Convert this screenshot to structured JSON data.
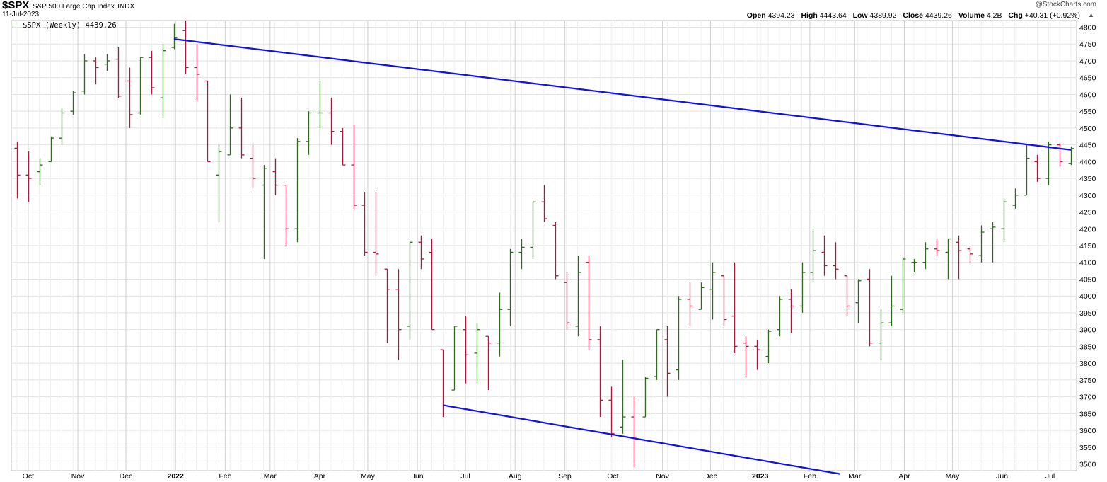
{
  "header": {
    "symbol": "$SPX",
    "name": "S&P 500 Large Cap Index",
    "exchange": "INDX",
    "date": "11-Jul-2023",
    "copyright": "@StockCharts.com"
  },
  "quote": {
    "open_label": "Open",
    "open": "4394.23",
    "high_label": "High",
    "high": "4443.64",
    "low_label": "Low",
    "low": "4389.92",
    "close_label": "Close",
    "close": "4439.26",
    "volume_label": "Volume",
    "volume": "4.2B",
    "chg_label": "Chg",
    "chg": "+40.31 (+0.92%)"
  },
  "legend": {
    "text": "$SPX (Weekly) 4439.26"
  },
  "colors": {
    "up": "#2e6b1e",
    "down": "#b0173a",
    "trendline": "#1010e0",
    "grid": "#e2e2e2"
  },
  "chart_data": {
    "type": "bar",
    "subtype": "ohlc",
    "title": "$SPX (Weekly) 4439.26",
    "ylim": [
      3480,
      4820
    ],
    "yticks": [
      3500,
      3550,
      3600,
      3650,
      3700,
      3750,
      3800,
      3850,
      3900,
      3950,
      4000,
      4050,
      4100,
      4150,
      4200,
      4250,
      4300,
      4350,
      4400,
      4450,
      4500,
      4550,
      4600,
      4650,
      4700,
      4750,
      4800
    ],
    "x_start": "2021-09-24",
    "x_end": "2023-07-14",
    "month_ticks": [
      {
        "label": "Oct",
        "date": "2021-10-01"
      },
      {
        "label": "Nov",
        "date": "2021-11-01"
      },
      {
        "label": "Dec",
        "date": "2021-12-01"
      },
      {
        "label": "2022",
        "date": "2022-01-01",
        "bold": true
      },
      {
        "label": "Feb",
        "date": "2022-02-01"
      },
      {
        "label": "Mar",
        "date": "2022-03-01"
      },
      {
        "label": "Apr",
        "date": "2022-04-01"
      },
      {
        "label": "May",
        "date": "2022-05-01"
      },
      {
        "label": "Jun",
        "date": "2022-06-01"
      },
      {
        "label": "Jul",
        "date": "2022-07-01"
      },
      {
        "label": "Aug",
        "date": "2022-08-01"
      },
      {
        "label": "Sep",
        "date": "2022-09-01"
      },
      {
        "label": "Oct",
        "date": "2022-10-01"
      },
      {
        "label": "Nov",
        "date": "2022-11-01"
      },
      {
        "label": "Dec",
        "date": "2022-12-01"
      },
      {
        "label": "2023",
        "date": "2023-01-01",
        "bold": true
      },
      {
        "label": "Feb",
        "date": "2023-02-01"
      },
      {
        "label": "Mar",
        "date": "2023-03-01"
      },
      {
        "label": "Apr",
        "date": "2023-04-01"
      },
      {
        "label": "May",
        "date": "2023-05-01"
      },
      {
        "label": "Jun",
        "date": "2023-06-01"
      },
      {
        "label": "Jul",
        "date": "2023-07-01"
      }
    ],
    "bars": [
      {
        "d": "2021-09-24",
        "o": 4440,
        "h": 4460,
        "l": 4290,
        "c": 4360
      },
      {
        "d": "2021-10-01",
        "o": 4360,
        "h": 4430,
        "l": 4280,
        "c": 4350
      },
      {
        "d": "2021-10-08",
        "o": 4370,
        "h": 4410,
        "l": 4330,
        "c": 4390
      },
      {
        "d": "2021-10-15",
        "o": 4400,
        "h": 4475,
        "l": 4400,
        "c": 4470
      },
      {
        "d": "2021-10-22",
        "o": 4470,
        "h": 4560,
        "l": 4450,
        "c": 4545
      },
      {
        "d": "2021-10-29",
        "o": 4550,
        "h": 4610,
        "l": 4540,
        "c": 4605
      },
      {
        "d": "2021-11-05",
        "o": 4610,
        "h": 4720,
        "l": 4600,
        "c": 4700
      },
      {
        "d": "2021-11-12",
        "o": 4700,
        "h": 4710,
        "l": 4630,
        "c": 4680
      },
      {
        "d": "2021-11-19",
        "o": 4690,
        "h": 4720,
        "l": 4670,
        "c": 4700
      },
      {
        "d": "2021-11-26",
        "o": 4705,
        "h": 4740,
        "l": 4590,
        "c": 4595
      },
      {
        "d": "2021-12-03",
        "o": 4640,
        "h": 4680,
        "l": 4500,
        "c": 4540
      },
      {
        "d": "2021-12-10",
        "o": 4545,
        "h": 4710,
        "l": 4540,
        "c": 4710
      },
      {
        "d": "2021-12-17",
        "o": 4710,
        "h": 4730,
        "l": 4600,
        "c": 4620
      },
      {
        "d": "2021-12-24",
        "o": 4590,
        "h": 4750,
        "l": 4530,
        "c": 4730
      },
      {
        "d": "2021-12-31",
        "o": 4740,
        "h": 4810,
        "l": 4735,
        "c": 4770
      },
      {
        "d": "2022-01-07",
        "o": 4790,
        "h": 4820,
        "l": 4660,
        "c": 4680
      },
      {
        "d": "2022-01-14",
        "o": 4680,
        "h": 4750,
        "l": 4580,
        "c": 4660
      },
      {
        "d": "2022-01-21",
        "o": 4640,
        "h": 4640,
        "l": 4400,
        "c": 4400
      },
      {
        "d": "2022-01-28",
        "o": 4360,
        "h": 4450,
        "l": 4220,
        "c": 4430
      },
      {
        "d": "2022-02-04",
        "o": 4420,
        "h": 4600,
        "l": 4420,
        "c": 4500
      },
      {
        "d": "2022-02-11",
        "o": 4500,
        "h": 4590,
        "l": 4410,
        "c": 4420
      },
      {
        "d": "2022-02-18",
        "o": 4410,
        "h": 4450,
        "l": 4320,
        "c": 4350
      },
      {
        "d": "2022-02-25",
        "o": 4330,
        "h": 4390,
        "l": 4110,
        "c": 4380
      },
      {
        "d": "2022-03-04",
        "o": 4370,
        "h": 4410,
        "l": 4300,
        "c": 4330
      },
      {
        "d": "2022-03-11",
        "o": 4330,
        "h": 4330,
        "l": 4150,
        "c": 4200
      },
      {
        "d": "2022-03-18",
        "o": 4200,
        "h": 4470,
        "l": 4160,
        "c": 4460
      },
      {
        "d": "2022-03-25",
        "o": 4460,
        "h": 4550,
        "l": 4420,
        "c": 4545
      },
      {
        "d": "2022-04-01",
        "o": 4545,
        "h": 4640,
        "l": 4500,
        "c": 4545
      },
      {
        "d": "2022-04-08",
        "o": 4545,
        "h": 4590,
        "l": 4450,
        "c": 4490
      },
      {
        "d": "2022-04-15",
        "o": 4490,
        "h": 4500,
        "l": 4390,
        "c": 4390
      },
      {
        "d": "2022-04-22",
        "o": 4390,
        "h": 4510,
        "l": 4260,
        "c": 4270
      },
      {
        "d": "2022-04-29",
        "o": 4270,
        "h": 4310,
        "l": 4120,
        "c": 4130
      },
      {
        "d": "2022-05-06",
        "o": 4130,
        "h": 4310,
        "l": 4060,
        "c": 4125
      },
      {
        "d": "2022-05-13",
        "o": 4080,
        "h": 4080,
        "l": 3860,
        "c": 4020
      },
      {
        "d": "2022-05-20",
        "o": 4020,
        "h": 4080,
        "l": 3810,
        "c": 3900
      },
      {
        "d": "2022-05-27",
        "o": 3910,
        "h": 4160,
        "l": 3870,
        "c": 4160
      },
      {
        "d": "2022-06-03",
        "o": 4160,
        "h": 4180,
        "l": 4080,
        "c": 4110
      },
      {
        "d": "2022-06-10",
        "o": 4130,
        "h": 4170,
        "l": 3900,
        "c": 3900
      },
      {
        "d": "2022-06-17",
        "o": 3840,
        "h": 3840,
        "l": 3640,
        "c": 3675
      },
      {
        "d": "2022-06-24",
        "o": 3720,
        "h": 3910,
        "l": 3720,
        "c": 3910
      },
      {
        "d": "2022-07-01",
        "o": 3900,
        "h": 3940,
        "l": 3740,
        "c": 3825
      },
      {
        "d": "2022-07-08",
        "o": 3830,
        "h": 3920,
        "l": 3740,
        "c": 3900
      },
      {
        "d": "2022-07-15",
        "o": 3880,
        "h": 3880,
        "l": 3720,
        "c": 3860
      },
      {
        "d": "2022-07-22",
        "o": 3860,
        "h": 4010,
        "l": 3820,
        "c": 3960
      },
      {
        "d": "2022-07-29",
        "o": 3960,
        "h": 4140,
        "l": 3910,
        "c": 4130
      },
      {
        "d": "2022-08-05",
        "o": 4130,
        "h": 4170,
        "l": 4080,
        "c": 4145
      },
      {
        "d": "2022-08-12",
        "o": 4145,
        "h": 4280,
        "l": 4110,
        "c": 4280
      },
      {
        "d": "2022-08-19",
        "o": 4280,
        "h": 4330,
        "l": 4220,
        "c": 4230
      },
      {
        "d": "2022-08-26",
        "o": 4210,
        "h": 4220,
        "l": 4050,
        "c": 4060
      },
      {
        "d": "2022-09-02",
        "o": 4040,
        "h": 4070,
        "l": 3900,
        "c": 3920
      },
      {
        "d": "2022-09-09",
        "o": 3910,
        "h": 4120,
        "l": 3880,
        "c": 4070
      },
      {
        "d": "2022-09-16",
        "o": 4100,
        "h": 4120,
        "l": 3840,
        "c": 3870
      },
      {
        "d": "2022-09-23",
        "o": 3870,
        "h": 3910,
        "l": 3640,
        "c": 3690
      },
      {
        "d": "2022-09-30",
        "o": 3690,
        "h": 3730,
        "l": 3580,
        "c": 3590
      },
      {
        "d": "2022-10-07",
        "o": 3610,
        "h": 3810,
        "l": 3590,
        "c": 3640
      },
      {
        "d": "2022-10-14",
        "o": 3640,
        "h": 3700,
        "l": 3490,
        "c": 3580
      },
      {
        "d": "2022-10-21",
        "o": 3640,
        "h": 3760,
        "l": 3640,
        "c": 3755
      },
      {
        "d": "2022-10-28",
        "o": 3760,
        "h": 3900,
        "l": 3750,
        "c": 3900
      },
      {
        "d": "2022-11-04",
        "o": 3870,
        "h": 3910,
        "l": 3700,
        "c": 3770
      },
      {
        "d": "2022-11-11",
        "o": 3780,
        "h": 4000,
        "l": 3750,
        "c": 3990
      },
      {
        "d": "2022-11-18",
        "o": 3990,
        "h": 4040,
        "l": 3910,
        "c": 3970
      },
      {
        "d": "2022-11-25",
        "o": 3960,
        "h": 4040,
        "l": 3960,
        "c": 4025
      },
      {
        "d": "2022-12-02",
        "o": 4020,
        "h": 4100,
        "l": 3930,
        "c": 4070
      },
      {
        "d": "2022-12-09",
        "o": 4060,
        "h": 4060,
        "l": 3910,
        "c": 3930
      },
      {
        "d": "2022-12-16",
        "o": 3940,
        "h": 4100,
        "l": 3830,
        "c": 3850
      },
      {
        "d": "2022-12-23",
        "o": 3860,
        "h": 3880,
        "l": 3760,
        "c": 3850
      },
      {
        "d": "2022-12-30",
        "o": 3850,
        "h": 3870,
        "l": 3780,
        "c": 3840
      },
      {
        "d": "2023-01-06",
        "o": 3820,
        "h": 3900,
        "l": 3800,
        "c": 3895
      },
      {
        "d": "2023-01-13",
        "o": 3900,
        "h": 4000,
        "l": 3880,
        "c": 3990
      },
      {
        "d": "2023-01-20",
        "o": 3990,
        "h": 4020,
        "l": 3890,
        "c": 3970
      },
      {
        "d": "2023-01-27",
        "o": 3970,
        "h": 4100,
        "l": 3950,
        "c": 4070
      },
      {
        "d": "2023-02-03",
        "o": 4070,
        "h": 4200,
        "l": 4040,
        "c": 4135
      },
      {
        "d": "2023-02-10",
        "o": 4130,
        "h": 4180,
        "l": 4060,
        "c": 4090
      },
      {
        "d": "2023-02-17",
        "o": 4090,
        "h": 4160,
        "l": 4050,
        "c": 4080
      },
      {
        "d": "2023-02-24",
        "o": 4060,
        "h": 4060,
        "l": 3940,
        "c": 3970
      },
      {
        "d": "2023-03-03",
        "o": 3980,
        "h": 4050,
        "l": 3920,
        "c": 4045
      },
      {
        "d": "2023-03-10",
        "o": 4050,
        "h": 4080,
        "l": 3850,
        "c": 3860
      },
      {
        "d": "2023-03-17",
        "o": 3860,
        "h": 3960,
        "l": 3810,
        "c": 3920
      },
      {
        "d": "2023-03-24",
        "o": 3920,
        "h": 4060,
        "l": 3910,
        "c": 3970
      },
      {
        "d": "2023-03-31",
        "o": 3960,
        "h": 4110,
        "l": 3950,
        "c": 4110
      },
      {
        "d": "2023-04-07",
        "o": 4100,
        "h": 4110,
        "l": 4070,
        "c": 4100
      },
      {
        "d": "2023-04-14",
        "o": 4100,
        "h": 4160,
        "l": 4080,
        "c": 4140
      },
      {
        "d": "2023-04-21",
        "o": 4140,
        "h": 4170,
        "l": 4120,
        "c": 4135
      },
      {
        "d": "2023-04-28",
        "o": 4130,
        "h": 4170,
        "l": 4050,
        "c": 4170
      },
      {
        "d": "2023-05-05",
        "o": 4160,
        "h": 4180,
        "l": 4050,
        "c": 4135
      },
      {
        "d": "2023-05-12",
        "o": 4140,
        "h": 4150,
        "l": 4100,
        "c": 4125
      },
      {
        "d": "2023-05-19",
        "o": 4120,
        "h": 4210,
        "l": 4100,
        "c": 4190
      },
      {
        "d": "2023-05-26",
        "o": 4200,
        "h": 4220,
        "l": 4100,
        "c": 4205
      },
      {
        "d": "2023-06-02",
        "o": 4200,
        "h": 4290,
        "l": 4160,
        "c": 4280
      },
      {
        "d": "2023-06-09",
        "o": 4270,
        "h": 4320,
        "l": 4260,
        "c": 4300
      },
      {
        "d": "2023-06-16",
        "o": 4300,
        "h": 4450,
        "l": 4300,
        "c": 4410
      },
      {
        "d": "2023-06-23",
        "o": 4400,
        "h": 4420,
        "l": 4340,
        "c": 4350
      },
      {
        "d": "2023-06-30",
        "o": 4350,
        "h": 4460,
        "l": 4330,
        "c": 4450
      },
      {
        "d": "2023-07-07",
        "o": 4450,
        "h": 4455,
        "l": 4385,
        "c": 4400
      },
      {
        "d": "2023-07-14",
        "o": 4394,
        "h": 4444,
        "l": 4390,
        "c": 4439
      }
    ],
    "trendlines": [
      {
        "name": "upper",
        "from": {
          "d": "2021-12-31",
          "v": 4765
        },
        "to": {
          "d": "2023-07-14",
          "v": 4435
        }
      },
      {
        "name": "lower",
        "from": {
          "d": "2022-06-17",
          "v": 3675
        },
        "to": {
          "d": "2023-02-20",
          "v": 3470
        }
      }
    ]
  }
}
